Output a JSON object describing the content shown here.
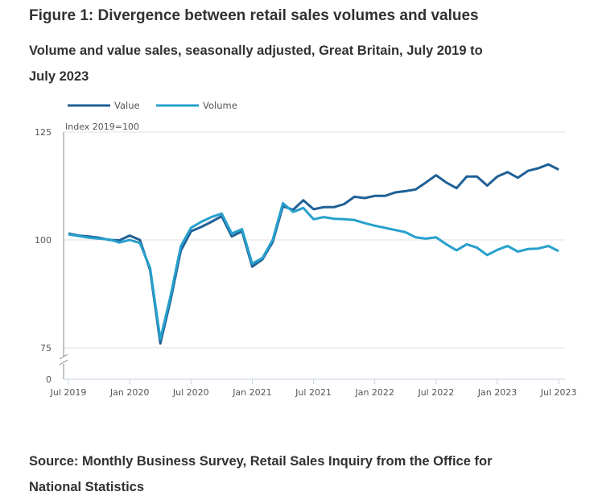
{
  "title": "Figure 1: Divergence between retail sales volumes and values",
  "subtitle": "Volume and value sales, seasonally adjusted, Great Britain, July 2019 to July 2023",
  "source": "Source: Monthly Business Survey, Retail Sales Inquiry from the Office for National Statistics",
  "chart_data": {
    "type": "line",
    "ylabel": "Index 2019=100",
    "yticks": [
      "125",
      "100",
      "75",
      "0"
    ],
    "ylim": [
      75,
      125
    ],
    "axis_break": true,
    "xticks": [
      "Jul 2019",
      "Jan 2020",
      "Jul 2020",
      "Jan 2021",
      "Jul 2021",
      "Jan 2022",
      "Jul 2022",
      "Jan 2023",
      "Jul 2023"
    ],
    "x_start": "Jul 2019",
    "x_end": "Jul 2023",
    "frequency": "monthly",
    "legend_position": "top-left",
    "series": [
      {
        "name": "Value",
        "color": "#206095",
        "values": [
          101.5,
          101,
          100.8,
          100.5,
          100,
          99.9,
          101,
          100,
          93,
          76,
          86,
          97.5,
          102,
          103,
          104.2,
          105.5,
          100.8,
          102,
          93.8,
          95.5,
          99.5,
          107.8,
          107,
          109.2,
          107.1,
          107.6,
          107.6,
          108.3,
          110,
          109.7,
          110.2,
          110.2,
          111,
          111.3,
          111.7,
          113.3,
          115,
          113.3,
          112,
          114.7,
          114.7,
          112.6,
          114.7,
          115.7,
          114.4,
          116,
          116.6,
          117.5,
          116.3
        ]
      },
      {
        "name": "Volume",
        "color": "#27a0cc",
        "values": [
          101.3,
          100.9,
          100.5,
          100.3,
          100.1,
          99.4,
          100,
          99.3,
          93.5,
          77,
          87,
          98.5,
          102.8,
          104.2,
          105.3,
          106.1,
          101.5,
          102.5,
          94.5,
          95.8,
          100,
          108.5,
          106.5,
          107.4,
          104.8,
          105.3,
          104.9,
          104.8,
          104.6,
          103.9,
          103.3,
          102.8,
          102.3,
          101.8,
          100.6,
          100.3,
          100.6,
          99,
          97.6,
          99,
          98.2,
          96.5,
          97.7,
          98.6,
          97.3,
          97.9,
          98,
          98.6,
          97.4
        ]
      }
    ]
  }
}
